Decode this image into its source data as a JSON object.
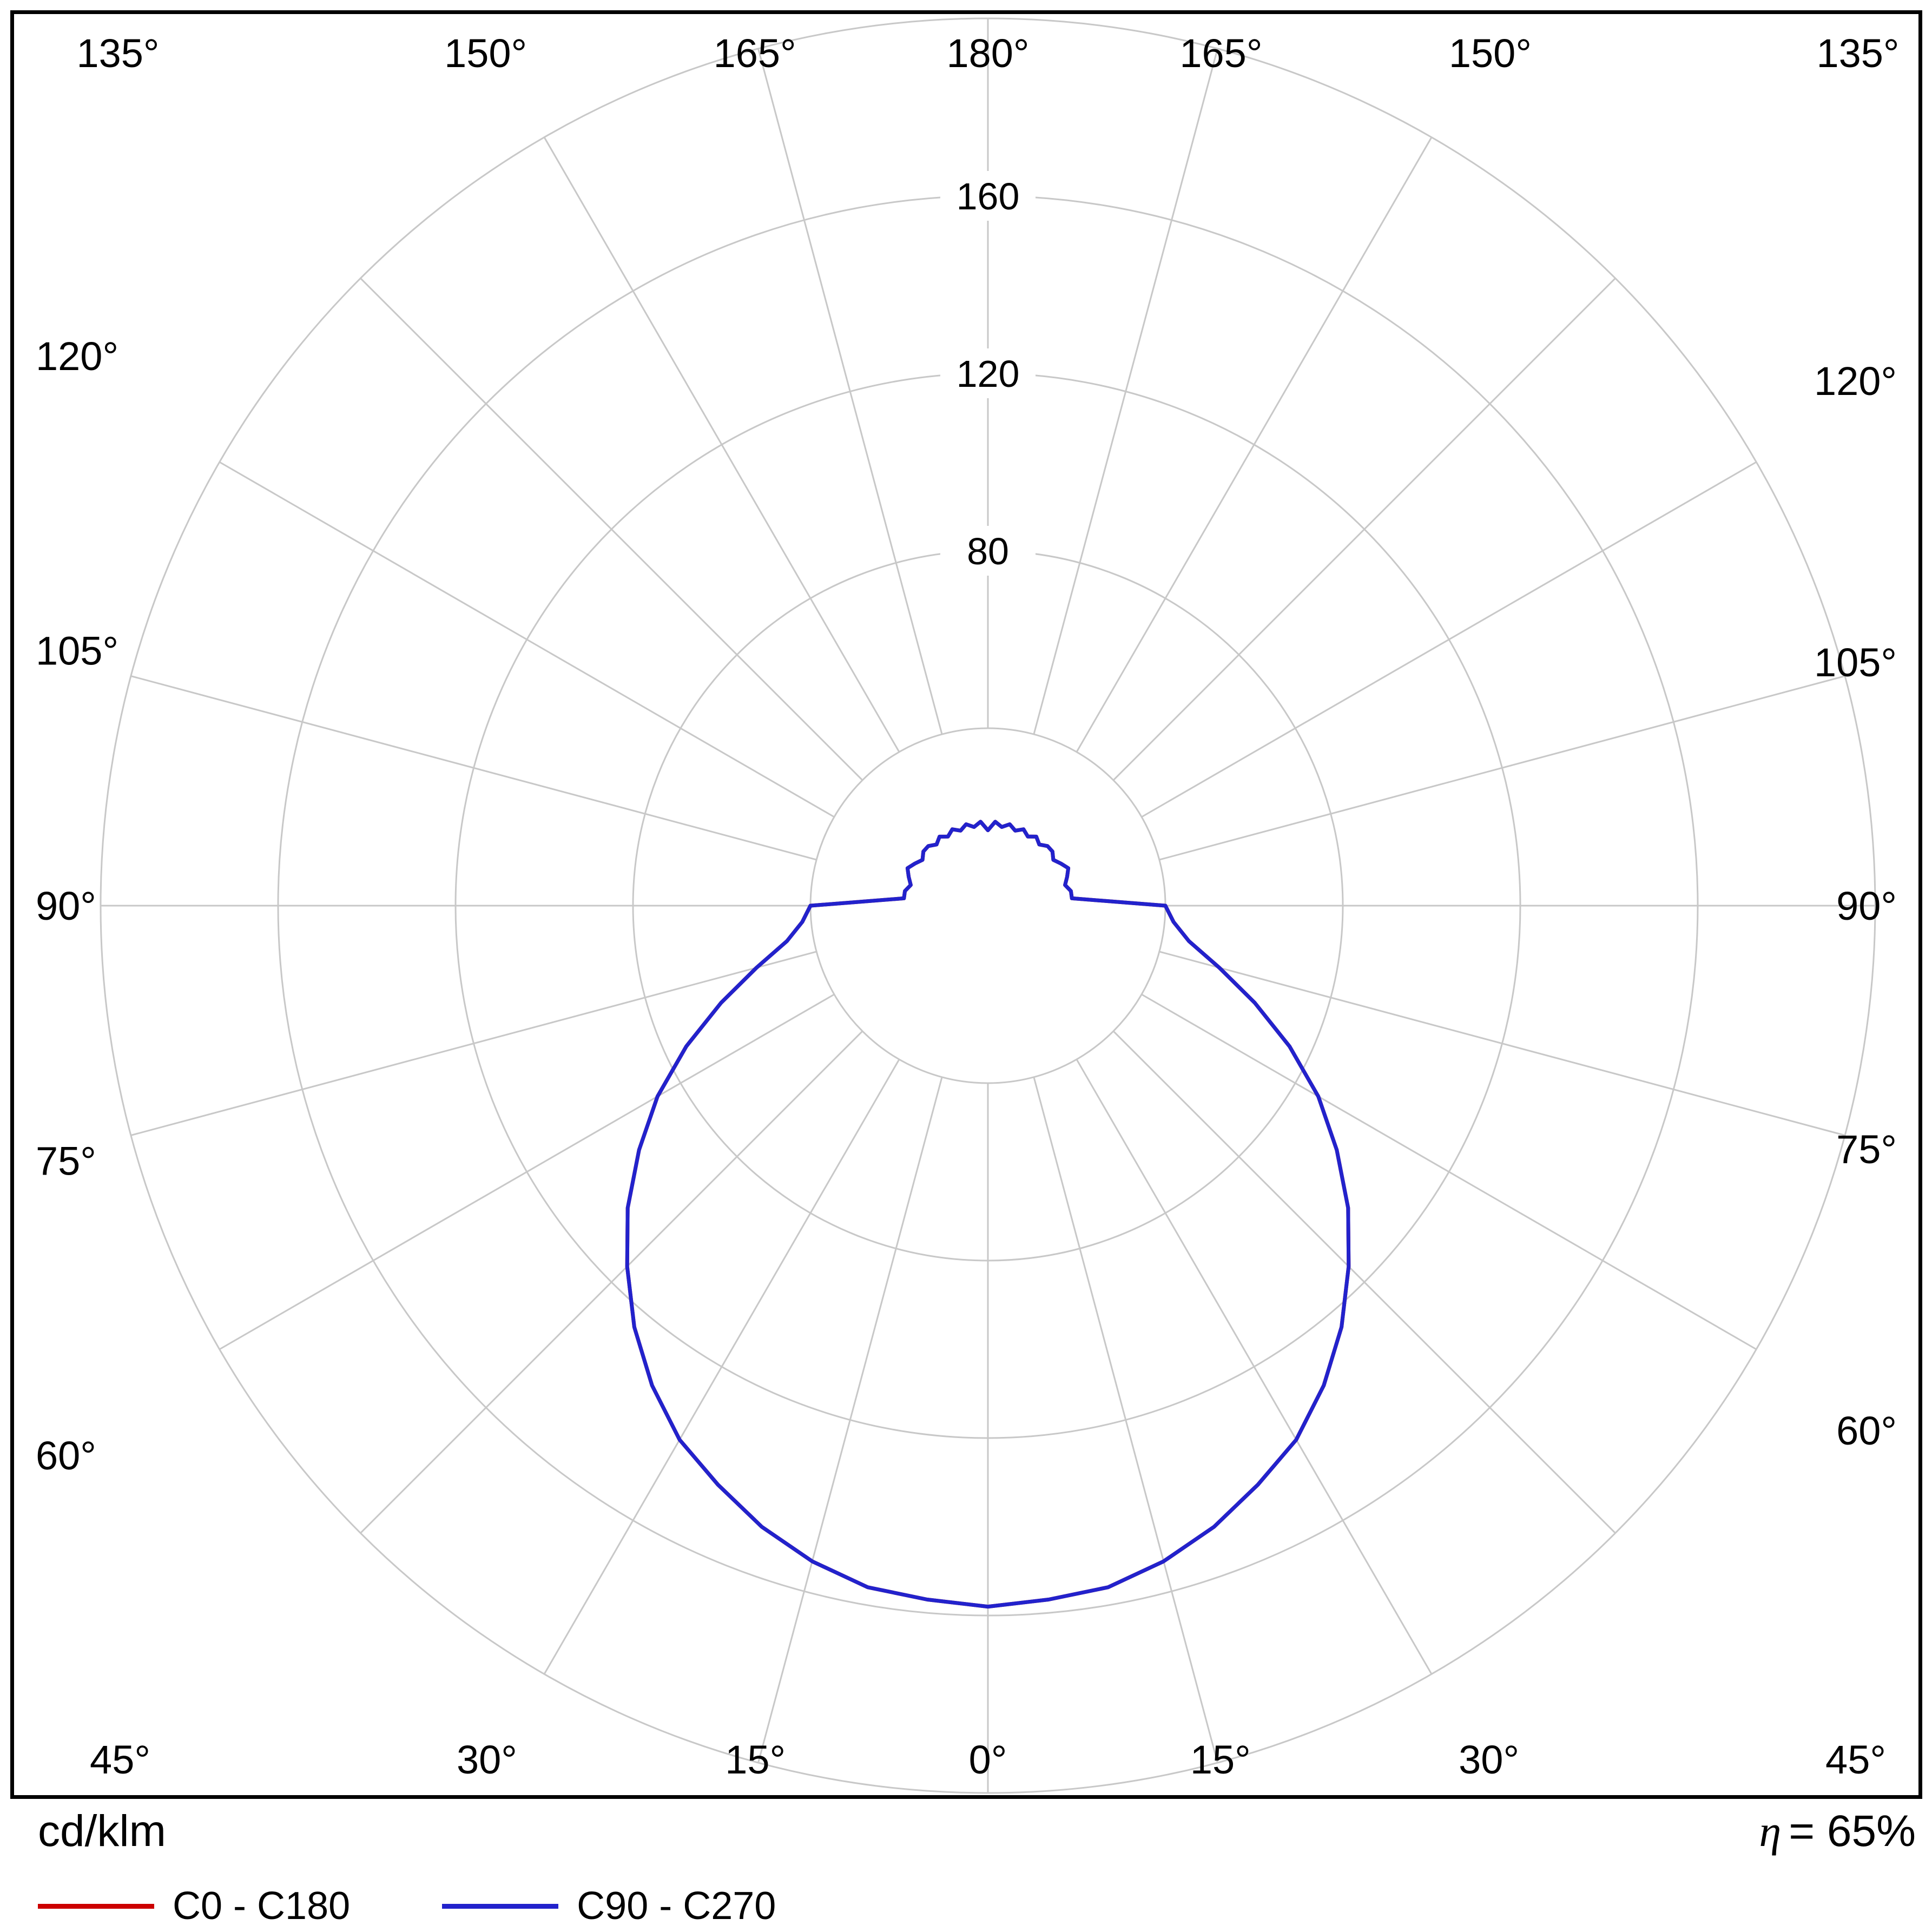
{
  "footer": {
    "unit_label": "cd/klm",
    "efficiency": {
      "symbol": "η",
      "text": "= 65%"
    },
    "legend": [
      {
        "label": "C0 - C180",
        "color": "#cc0000"
      },
      {
        "label": "C90 - C270",
        "color": "#2222cc"
      }
    ]
  },
  "chart_data": {
    "type": "line",
    "subtype": "polar-luminous-intensity-distribution",
    "unit": "cd/klm",
    "grid_color": "#c8c8c8",
    "angle_step_deg": 15,
    "angle_ticks_deg": [
      0,
      15,
      30,
      45,
      60,
      75,
      90,
      105,
      120,
      135,
      150,
      165,
      180
    ],
    "angle_tick_labels": [
      "0°",
      "15°",
      "30°",
      "45°",
      "60°",
      "75°",
      "90°",
      "105°",
      "120°",
      "135°",
      "150°",
      "165°",
      "180°"
    ],
    "radial_grid": [
      40,
      80,
      120,
      160,
      200
    ],
    "radial_max": 200,
    "radial_label_values": [
      80,
      120,
      160
    ],
    "radial_label_labels": [
      "80",
      "120",
      "160"
    ],
    "symmetric_about_vertical_axis": true,
    "efficiency_percent": 65,
    "series": [
      {
        "id": "c0-c180",
        "name": "C0 - C180",
        "color": "#cc0000",
        "points": [
          [
            0,
            158
          ],
          [
            5,
            157
          ],
          [
            10,
            156
          ],
          [
            15,
            153
          ],
          [
            20,
            149
          ],
          [
            25,
            144
          ],
          [
            30,
            139
          ],
          [
            35,
            132
          ],
          [
            40,
            124
          ],
          [
            45,
            115
          ],
          [
            50,
            106
          ],
          [
            55,
            96
          ],
          [
            60,
            86
          ],
          [
            65,
            75
          ],
          [
            70,
            64
          ],
          [
            75,
            54
          ],
          [
            80,
            46
          ],
          [
            85,
            42
          ],
          [
            90,
            40
          ],
          [
            95,
            19
          ],
          [
            100,
            19
          ],
          [
            105,
            18
          ],
          [
            110,
            19
          ],
          [
            115,
            20
          ],
          [
            120,
            19
          ],
          [
            125,
            18
          ],
          [
            130,
            19
          ],
          [
            135,
            19
          ],
          [
            140,
            18
          ],
          [
            145,
            19
          ],
          [
            150,
            18
          ],
          [
            155,
            19
          ],
          [
            160,
            18
          ],
          [
            165,
            19
          ],
          [
            170,
            18
          ],
          [
            175,
            19
          ],
          [
            180,
            17
          ]
        ]
      },
      {
        "id": "c90-c270",
        "name": "C90 - C270",
        "color": "#2222cc",
        "points": [
          [
            0,
            158
          ],
          [
            5,
            157
          ],
          [
            10,
            156
          ],
          [
            15,
            153
          ],
          [
            20,
            149
          ],
          [
            25,
            144
          ],
          [
            30,
            139
          ],
          [
            35,
            132
          ],
          [
            40,
            124
          ],
          [
            45,
            115
          ],
          [
            50,
            106
          ],
          [
            55,
            96
          ],
          [
            60,
            86
          ],
          [
            65,
            75
          ],
          [
            70,
            64
          ],
          [
            75,
            54
          ],
          [
            80,
            46
          ],
          [
            85,
            42
          ],
          [
            90,
            40
          ],
          [
            95,
            19
          ],
          [
            100,
            19
          ],
          [
            105,
            18
          ],
          [
            110,
            19
          ],
          [
            115,
            20
          ],
          [
            120,
            19
          ],
          [
            125,
            18
          ],
          [
            130,
            19
          ],
          [
            135,
            19
          ],
          [
            140,
            18
          ],
          [
            145,
            19
          ],
          [
            150,
            18
          ],
          [
            155,
            19
          ],
          [
            160,
            18
          ],
          [
            165,
            19
          ],
          [
            170,
            18
          ],
          [
            175,
            19
          ],
          [
            180,
            17
          ]
        ]
      }
    ]
  }
}
